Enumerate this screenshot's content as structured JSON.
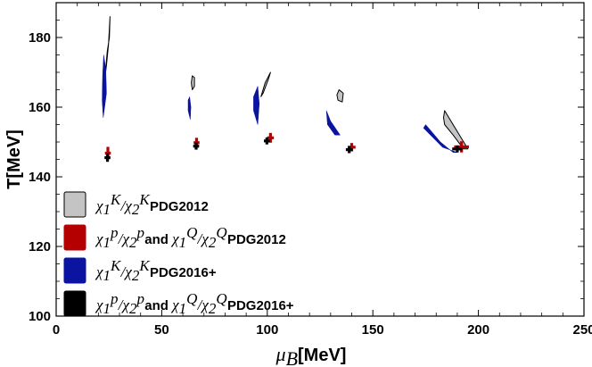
{
  "chart_data": {
    "type": "scatter",
    "title": "",
    "xlabel": {
      "symbol": "μ",
      "sub": "B",
      "unit": "[MeV]"
    },
    "ylabel": "T[MeV]",
    "xlim": [
      0,
      250
    ],
    "ylim": [
      100,
      190
    ],
    "xticks": [
      0,
      50,
      100,
      150,
      200,
      250
    ],
    "yticks": [
      100,
      120,
      140,
      160,
      180
    ],
    "grid": false,
    "legend_position": "bottom-left",
    "colors": {
      "gray": "#c4c4c4",
      "red": "#b40000",
      "blue": "#0a14a0",
      "black": "#000000"
    },
    "legend": [
      {
        "color_key": "gray",
        "parts": [
          [
            "χ",
            "1",
            "K"
          ],
          [
            "/",
            ""
          ],
          [
            "χ",
            "2",
            "K"
          ]
        ],
        "suffix": " PDG2012"
      },
      {
        "color_key": "red",
        "parts": [
          [
            "χ",
            "1",
            "p"
          ],
          [
            "/",
            ""
          ],
          [
            "χ",
            "2",
            "p"
          ]
        ],
        "middle": " and ",
        "parts2": [
          [
            "χ",
            "1",
            "Q"
          ],
          [
            "/",
            ""
          ],
          [
            "χ",
            "2",
            "Q"
          ]
        ],
        "suffix": " PDG2012"
      },
      {
        "color_key": "blue",
        "parts": [
          [
            "χ",
            "1",
            "K"
          ],
          [
            "/",
            ""
          ],
          [
            "χ",
            "2",
            "K"
          ]
        ],
        "suffix": " PDG2016+"
      },
      {
        "color_key": "black",
        "parts": [
          [
            "χ",
            "1",
            "p"
          ],
          [
            "/",
            ""
          ],
          [
            "χ",
            "2",
            "p"
          ]
        ],
        "middle": " and ",
        "parts2": [
          [
            "χ",
            "1",
            "Q"
          ],
          [
            "/",
            ""
          ],
          [
            "χ",
            "2",
            "Q"
          ]
        ],
        "suffix": " PDG2016+"
      }
    ],
    "series": [
      {
        "name": "χ1K/χ2K PDG2012",
        "color_key": "gray",
        "kind": "region",
        "regions": [
          [
            [
              25.5,
              186
            ],
            [
              25.2,
              180
            ],
            [
              24.2,
              176
            ],
            [
              23.2,
              169
            ],
            [
              23.8,
              172
            ],
            [
              24.8,
              178
            ]
          ],
          [
            [
              64.5,
              169
            ],
            [
              65.5,
              168.5
            ],
            [
              65.5,
              166
            ],
            [
              64.5,
              165
            ],
            [
              64,
              167
            ]
          ],
          [
            [
              101.5,
              170
            ],
            [
              99,
              167
            ],
            [
              97,
              163
            ],
            [
              98,
              164
            ],
            [
              100.5,
              168
            ]
          ],
          [
            [
              134,
              165
            ],
            [
              136,
              164
            ],
            [
              135.5,
              161.5
            ],
            [
              133.5,
              162
            ],
            [
              133,
              163.5
            ]
          ],
          [
            [
              184,
              159
            ],
            [
              190,
              153
            ],
            [
              195,
              148
            ],
            [
              193,
              148
            ],
            [
              188,
              152
            ],
            [
              184,
              155
            ],
            [
              183.5,
              157
            ]
          ]
        ]
      },
      {
        "name": "χ1p/χ2p and χ1Q/χ2Q PDG2012",
        "color_key": "red",
        "kind": "cross",
        "points": [
          {
            "x": 24.5,
            "y": 146.8,
            "dx": 1.4,
            "dy": 1.8
          },
          {
            "x": 66.5,
            "y": 149.8,
            "dx": 1.4,
            "dy": 1.4
          },
          {
            "x": 101.5,
            "y": 151.2,
            "dx": 1.6,
            "dy": 1.4
          },
          {
            "x": 140,
            "y": 148.5,
            "dx": 1.8,
            "dy": 1.2
          },
          {
            "x": 192,
            "y": 148.6,
            "dx": 3.5,
            "dy": 1.6
          }
        ]
      },
      {
        "name": "χ1K/χ2K PDG2016+",
        "color_key": "blue",
        "kind": "region",
        "regions": [
          [
            [
              22.5,
              175
            ],
            [
              23.5,
              171
            ],
            [
              23.8,
              164
            ],
            [
              22.3,
              157
            ],
            [
              21.8,
              162
            ],
            [
              22,
              169
            ]
          ],
          [
            [
              63.2,
              163
            ],
            [
              63.8,
              160
            ],
            [
              63.5,
              156.5
            ],
            [
              62.5,
              159
            ],
            [
              62.5,
              162
            ]
          ],
          [
            [
              95.5,
              166
            ],
            [
              96.2,
              161
            ],
            [
              95.5,
              155
            ],
            [
              93.5,
              159
            ],
            [
              93.5,
              163
            ]
          ],
          [
            [
              128,
              159
            ],
            [
              130,
              156
            ],
            [
              134.5,
              152
            ],
            [
              132,
              152
            ],
            [
              128.5,
              155
            ]
          ],
          [
            [
              175,
              155
            ],
            [
              182,
              150
            ],
            [
              188,
              147
            ],
            [
              190,
              147
            ],
            [
              183,
              148.5
            ],
            [
              174,
              154
            ]
          ]
        ]
      },
      {
        "name": "χ1p/χ2p and χ1Q/χ2Q PDG2016+",
        "color_key": "black",
        "kind": "cross",
        "points": [
          {
            "x": 24.3,
            "y": 145.5,
            "dx": 1.4,
            "dy": 1.2
          },
          {
            "x": 66.3,
            "y": 148.8,
            "dx": 1.4,
            "dy": 1.0
          },
          {
            "x": 99.8,
            "y": 150.3,
            "dx": 1.4,
            "dy": 1.0
          },
          {
            "x": 138.8,
            "y": 147.8,
            "dx": 1.6,
            "dy": 1.0
          },
          {
            "x": 190,
            "y": 148,
            "dx": 2.4,
            "dy": 1.0
          }
        ]
      }
    ]
  }
}
